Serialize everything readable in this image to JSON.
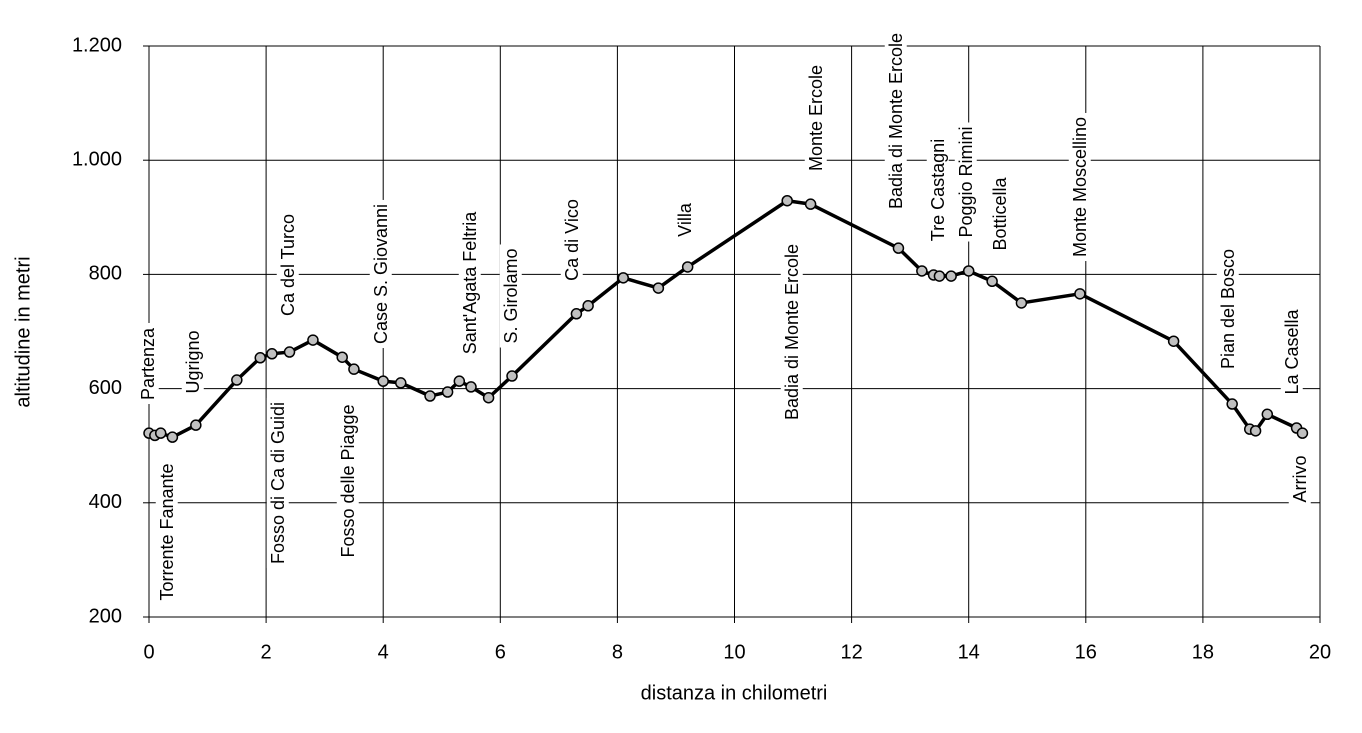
{
  "chart_data": {
    "type": "line",
    "x_label": "distanza in chilometri",
    "y_label": "altitudine  in metri",
    "xlim": [
      0,
      20
    ],
    "xticks": [
      0,
      2,
      4,
      6,
      8,
      10,
      12,
      14,
      16,
      18,
      20
    ],
    "ylim": [
      200,
      1200
    ],
    "yticks": [
      200,
      400,
      600,
      800,
      {
        "value": 1000,
        "label": "1.000"
      },
      {
        "value": 1200,
        "label": "1.200"
      }
    ],
    "grid": true,
    "series": [
      {
        "color": "#000000",
        "x": [
          0,
          0.1,
          0.2,
          0.4,
          0.8,
          1.5,
          1.9,
          2.1,
          2.4,
          2.8,
          3.3,
          3.5,
          4.0,
          4.3,
          4.8,
          5.1,
          5.3,
          5.5,
          5.8,
          6.2,
          7.3,
          7.5,
          8.1,
          8.7,
          9.2,
          10.9,
          11.3,
          12.8,
          13.2,
          13.4,
          13.5,
          13.7,
          14.0,
          14.4,
          14.9,
          15.9,
          17.5,
          18.5,
          18.8,
          18.9,
          19.1,
          19.6,
          19.7
        ],
        "values": [
          522,
          518,
          522,
          515,
          536,
          615,
          654,
          661,
          664,
          685,
          655,
          634,
          613,
          610,
          587,
          594,
          613,
          603,
          584,
          622,
          731,
          745,
          794,
          776,
          813,
          929,
          923,
          846,
          806,
          799,
          797,
          797,
          806,
          788,
          750,
          766,
          683,
          573,
          529,
          526,
          555,
          531,
          522
        ]
      }
    ],
    "annotations": [
      "Partenza",
      "Torrente Fanante",
      "Ugrigno",
      "Fosso di Ca di Guidi",
      "Ca del Turco",
      "Fosso delle Piagge",
      "Case S. Giovanni",
      "Sant'Agata Feltria",
      "S. Girolamo",
      "Ca di Vico",
      "Villa",
      "Badia di Monte Ercole",
      "Monte Ercole",
      "Badia di Monte Ercole",
      "Tre Castagni",
      "Poggio Rimini",
      "Botticella",
      "Monte Moscellino",
      "Pian del Bosco",
      "La Casella",
      "Arrivo"
    ]
  }
}
